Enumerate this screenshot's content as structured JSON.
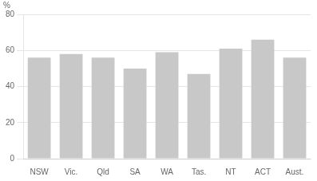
{
  "chart_data": {
    "type": "bar",
    "y_label": "%",
    "categories": [
      "NSW",
      "Vic.",
      "Qld",
      "SA",
      "WA",
      "Tas.",
      "NT",
      "ACT",
      "Aust."
    ],
    "values": [
      56,
      58,
      56,
      50,
      59,
      47,
      61,
      66,
      56
    ],
    "color": "#c8c8c8",
    "ylim": [
      0,
      80
    ],
    "yticks": [
      0,
      20,
      40,
      60,
      80
    ],
    "grid": true
  }
}
